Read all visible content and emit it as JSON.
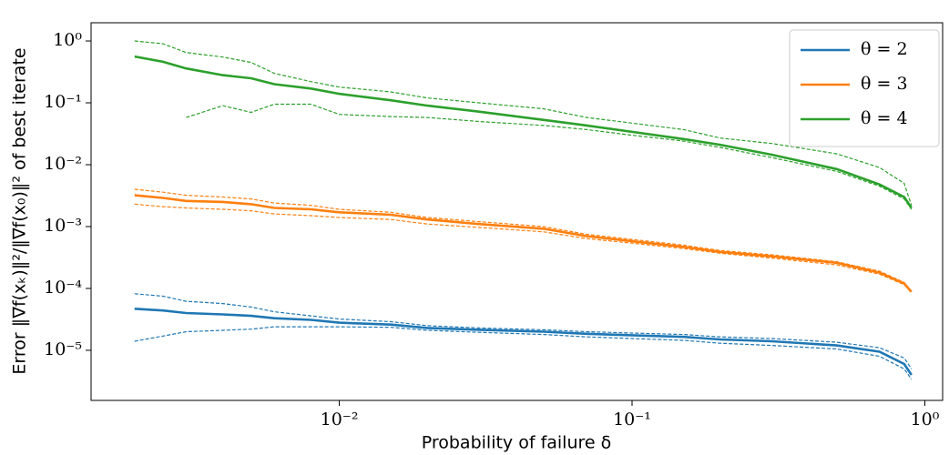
{
  "chart_data": {
    "type": "line",
    "xlabel": "Probability of failure δ",
    "ylabel": "Error ‖∇f(xₖ)‖²/‖∇f(x₀)‖² of best iterate",
    "xscale": "log",
    "yscale": "log",
    "xlim": [
      0.00142,
      1.15
    ],
    "ylim": [
      1.55e-06,
      1.97
    ],
    "xticks": [
      {
        "value": 0.01,
        "label": "10⁻²"
      },
      {
        "value": 0.1,
        "label": "10⁻¹"
      },
      {
        "value": 1,
        "label": "10⁰"
      }
    ],
    "yticks": [
      {
        "value": 1e-05,
        "label": "10⁻⁵"
      },
      {
        "value": 0.0001,
        "label": "10⁻⁴"
      },
      {
        "value": 0.001,
        "label": "10⁻³"
      },
      {
        "value": 0.01,
        "label": "10⁻²"
      },
      {
        "value": 0.1,
        "label": "10⁻¹"
      },
      {
        "value": 1,
        "label": "10⁰"
      }
    ],
    "legend": "upper right",
    "x": [
      0.002,
      0.0025,
      0.003,
      0.004,
      0.005,
      0.006,
      0.008,
      0.01,
      0.015,
      0.02,
      0.03,
      0.05,
      0.07,
      0.1,
      0.15,
      0.2,
      0.3,
      0.5,
      0.7,
      0.85,
      0.9
    ],
    "series": [
      {
        "name": "θ = 2",
        "color": "#1f77b4",
        "values": [
          4.7e-05,
          4.4e-05,
          4e-05,
          3.8e-05,
          3.6e-05,
          3.3e-05,
          3.1e-05,
          2.8e-05,
          2.6e-05,
          2.3e-05,
          2.15e-05,
          2e-05,
          1.85e-05,
          1.75e-05,
          1.65e-05,
          1.5e-05,
          1.4e-05,
          1.2e-05,
          9.5e-06,
          6e-06,
          4e-06
        ],
        "upper": [
          8.2e-05,
          7.5e-05,
          6.2e-05,
          5.7e-05,
          5e-05,
          4.2e-05,
          3.6e-05,
          3.2e-05,
          2.9e-05,
          2.5e-05,
          2.3e-05,
          2.15e-05,
          2e-05,
          1.9e-05,
          1.8e-05,
          1.65e-05,
          1.55e-05,
          1.35e-05,
          1.1e-05,
          7.5e-06,
          5e-06
        ],
        "lower": [
          1.4e-05,
          1.7e-05,
          2e-05,
          2.1e-05,
          2.2e-05,
          2.4e-05,
          2.4e-05,
          2.4e-05,
          2.35e-05,
          2.1e-05,
          1.95e-05,
          1.8e-05,
          1.65e-05,
          1.55e-05,
          1.45e-05,
          1.3e-05,
          1.2e-05,
          1.05e-05,
          8e-06,
          5e-06,
          3.4e-06
        ]
      },
      {
        "name": "θ = 3",
        "color": "#ff7f0e",
        "values": [
          0.0032,
          0.0029,
          0.0026,
          0.0025,
          0.0023,
          0.002,
          0.0019,
          0.0017,
          0.00155,
          0.0013,
          0.0011,
          0.00092,
          0.0007,
          0.00058,
          0.00047,
          0.00039,
          0.00033,
          0.00026,
          0.00018,
          0.00012,
          8.8e-05
        ],
        "upper": [
          0.004,
          0.0036,
          0.0032,
          0.003,
          0.0028,
          0.0024,
          0.0022,
          0.0019,
          0.0017,
          0.0014,
          0.0012,
          0.001,
          0.00075,
          0.00062,
          0.0005,
          0.00041,
          0.00035,
          0.00027,
          0.00019,
          0.000125,
          9e-05
        ],
        "lower": [
          0.0023,
          0.0021,
          0.002,
          0.0019,
          0.0018,
          0.0016,
          0.0015,
          0.0014,
          0.0013,
          0.0011,
          0.00097,
          0.00082,
          0.00064,
          0.00054,
          0.00044,
          0.00037,
          0.00031,
          0.00024,
          0.00017,
          0.000115,
          8.5e-05
        ]
      },
      {
        "name": "θ = 4",
        "color": "#2ca02c",
        "values": [
          0.56,
          0.46,
          0.36,
          0.28,
          0.25,
          0.2,
          0.17,
          0.14,
          0.11,
          0.09,
          0.072,
          0.053,
          0.043,
          0.034,
          0.026,
          0.021,
          0.0145,
          0.0085,
          0.0048,
          0.003,
          0.002
        ],
        "upper": [
          1.0,
          0.9,
          0.65,
          0.55,
          0.45,
          0.3,
          0.22,
          0.18,
          0.15,
          0.12,
          0.1,
          0.08,
          0.058,
          0.047,
          0.037,
          0.027,
          0.022,
          0.015,
          0.009,
          0.005,
          0.0022
        ],
        "lower": [
          null,
          null,
          0.058,
          0.09,
          0.07,
          0.095,
          0.095,
          0.065,
          0.06,
          0.058,
          0.05,
          0.043,
          0.037,
          0.03,
          0.024,
          0.019,
          0.013,
          0.0078,
          0.0045,
          0.0028,
          0.0019
        ]
      }
    ]
  }
}
